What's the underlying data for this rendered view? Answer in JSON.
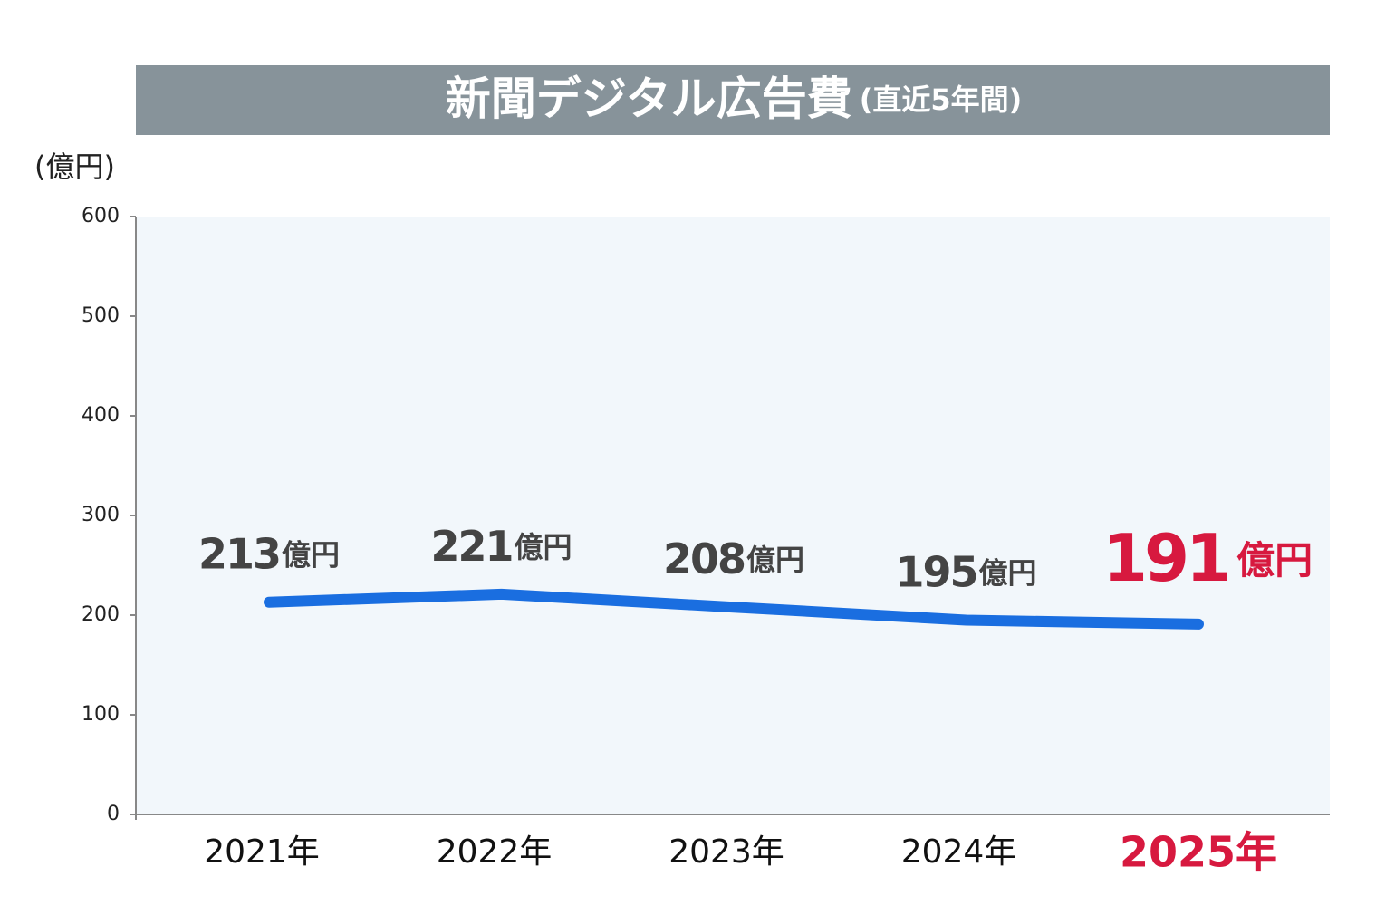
{
  "chart_data": {
    "type": "line",
    "title": "新聞デジタル広告費",
    "subtitle": "(直近5年間)",
    "y_label": "(億円)",
    "categories": [
      "2021年",
      "2022年",
      "2023年",
      "2024年",
      "2025年"
    ],
    "series": [
      {
        "name": "新聞デジタル広告費",
        "color": "#1a6ee0",
        "values": [
          213,
          221,
          208,
          195,
          191
        ],
        "value_labels": [
          "213億円",
          "221億円",
          "208億円",
          "195億円",
          "191億円"
        ]
      }
    ],
    "ylim": [
      0,
      600
    ],
    "yticks": [
      0,
      100,
      200,
      300,
      400,
      500,
      600
    ],
    "grid": false,
    "highlight_last": true,
    "highlight_color": "#d7193f"
  }
}
